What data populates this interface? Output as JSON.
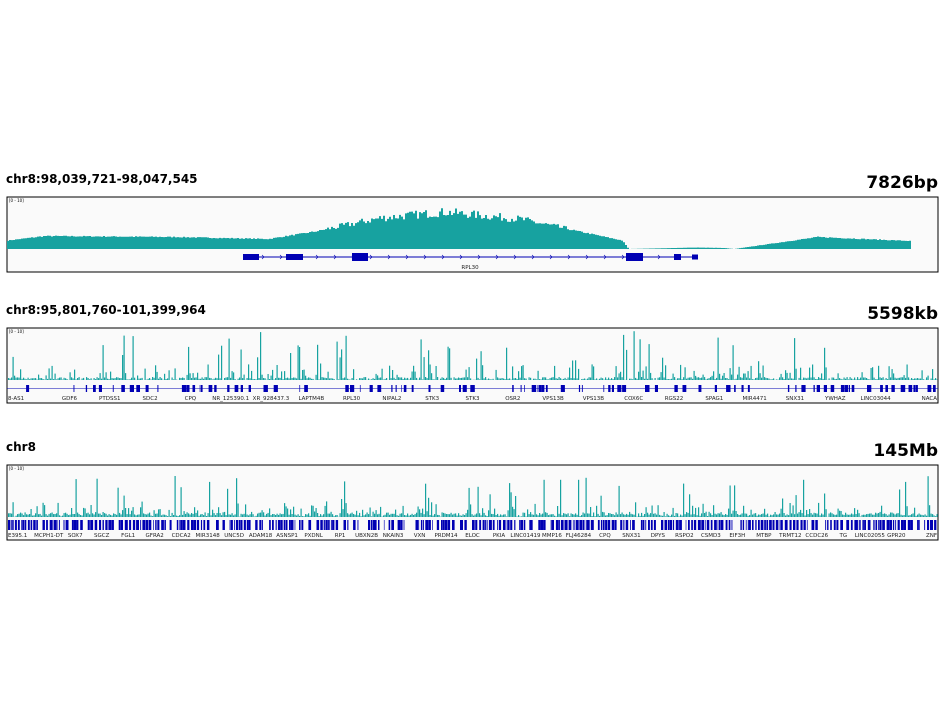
{
  "panels": [
    {
      "locus": "chr8:98,039,721-98,047,545",
      "size": "7826bp",
      "range": "[0 - 10]",
      "genes": [
        "RPL30"
      ]
    },
    {
      "locus": "chr8:95,801,760-101,399,964",
      "size": "5598kb",
      "range": "[0 - 10]",
      "genes": [
        "8-AS1",
        "GDF6",
        "PTDSS1",
        "SDC2",
        "CPQ",
        "NR_125390.1",
        "XR_928437.3",
        "LAPTM4B",
        "RPL30",
        "NIPAL2",
        "STK3",
        "STK3",
        "OSR2",
        "VPS13B",
        "VPS13B",
        "COX6C",
        "RGS22",
        "SPAG1",
        "MIR4471",
        "SNX31",
        "YWHAZ",
        "LINC03044",
        "NACA"
      ]
    },
    {
      "locus": "chr8",
      "size": "145Mb",
      "range": "[0 - 10]",
      "genes": [
        "E395.1",
        "MCPH1-DT",
        "SOX7",
        "SGCZ",
        "FGL1",
        "GFRA2",
        "CDCA2",
        "MIR3148",
        "UNC5D",
        "ADAM18",
        "ASNSP1",
        "PXDNL",
        "RP1",
        "UBXN2B",
        "NKAIN3",
        "VXN",
        "PRDM14",
        "ELOC",
        "PKIA",
        "LINC01419",
        "MMP16",
        "FLJ46284",
        "CPQ",
        "SNX31",
        "DPYS",
        "RSPO2",
        "CSMD3",
        "EIF3H",
        "MTBP",
        "TRMT12",
        "CCDC26",
        "TG",
        "LINC02055",
        "GPR20",
        "ZNF"
      ]
    }
  ]
}
